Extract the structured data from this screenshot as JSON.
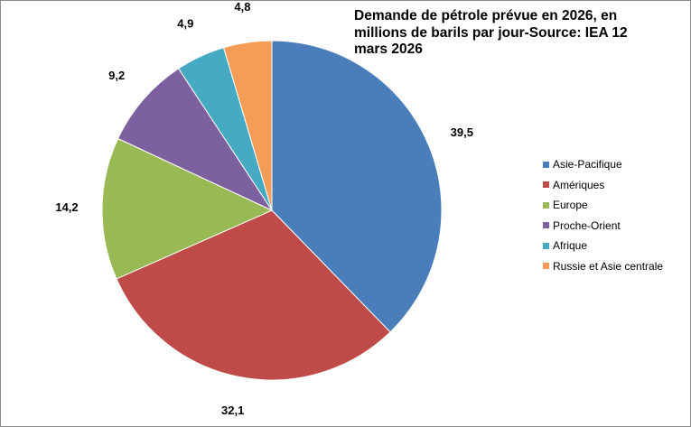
{
  "chart_data": {
    "type": "pie",
    "title": "Demande de pétrole prévue en 2026, en millions de barils par jour-Source: IEA 12 mars 2026",
    "legend_position": "right",
    "start_angle": "top",
    "direction": "clockwise",
    "slices": [
      {
        "name": "Asie-Pacifique",
        "value": 39.5,
        "label": "39,5",
        "color": "#4a7ebb"
      },
      {
        "name": "Amériques",
        "value": 32.1,
        "label": "32,1",
        "color": "#be4b48"
      },
      {
        "name": "Europe",
        "value": 14.2,
        "label": "14,2",
        "color": "#98b954"
      },
      {
        "name": "Proche-Orient",
        "value": 9.2,
        "label": "9,2",
        "color": "#7d60a0"
      },
      {
        "name": "Afrique",
        "value": 4.9,
        "label": "4,9",
        "color": "#46aac5"
      },
      {
        "name": "Russie et Asie centrale",
        "value": 4.8,
        "label": "4,8",
        "color": "#f59d56"
      }
    ]
  }
}
